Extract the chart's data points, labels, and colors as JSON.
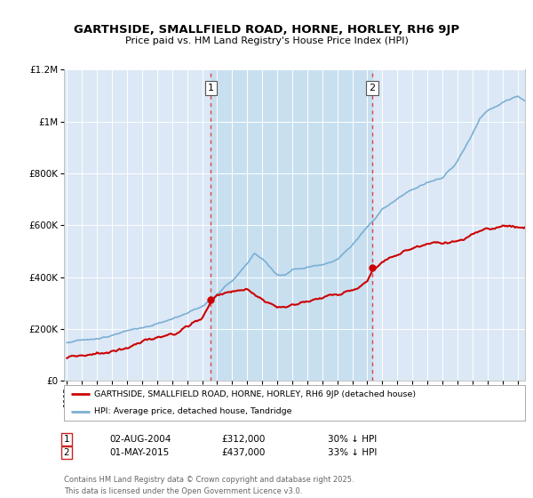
{
  "title": "GARTHSIDE, SMALLFIELD ROAD, HORNE, HORLEY, RH6 9JP",
  "subtitle": "Price paid vs. HM Land Registry's House Price Index (HPI)",
  "legend_label_red": "GARTHSIDE, SMALLFIELD ROAD, HORNE, HORLEY, RH6 9JP (detached house)",
  "legend_label_blue": "HPI: Average price, detached house, Tandridge",
  "sale1_date": "02-AUG-2004",
  "sale1_price": 312000,
  "sale1_pct": "30% ↓ HPI",
  "sale1_x": 2004.58,
  "sale2_date": "01-MAY-2015",
  "sale2_price": 437000,
  "sale2_pct": "33% ↓ HPI",
  "sale2_x": 2015.33,
  "footer": "Contains HM Land Registry data © Crown copyright and database right 2025.\nThis data is licensed under the Open Government Licence v3.0.",
  "ylim": [
    0,
    1200000
  ],
  "xlim": [
    1994.8,
    2025.5
  ],
  "background_color": "#ffffff",
  "plot_bg_color": "#dce8f5",
  "shade_color": "#c8dff0",
  "grid_color": "#ffffff",
  "red_color": "#cc0000",
  "blue_color": "#7aafd4",
  "vline_color": "#dd4444"
}
